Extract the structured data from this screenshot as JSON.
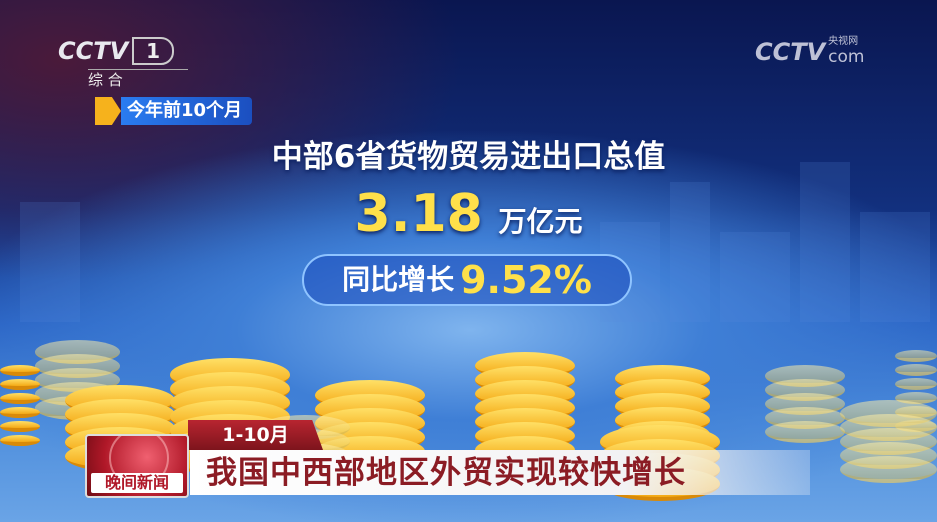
{
  "channel_logo": {
    "brand": "CCTV",
    "number": "1",
    "name": "综 合"
  },
  "watermark": {
    "brand": "CCTV",
    "site": "央视网",
    "suffix": "com"
  },
  "period_tag": "今年前10个月",
  "headline": "中部6省货物贸易进出口总值",
  "total_value": {
    "number": "3.18",
    "unit": "万亿元"
  },
  "growth": {
    "label": "同比增长",
    "value": "9.52%"
  },
  "lower_third": {
    "date_tag": "1-10月",
    "program": "晚间新闻",
    "title": "我国中西部地区外贸实现较快增长"
  },
  "colors": {
    "accent_yellow": "#ffd43a",
    "caption_red": "#8b1c24",
    "tag_blue": "#1b5fd6"
  }
}
